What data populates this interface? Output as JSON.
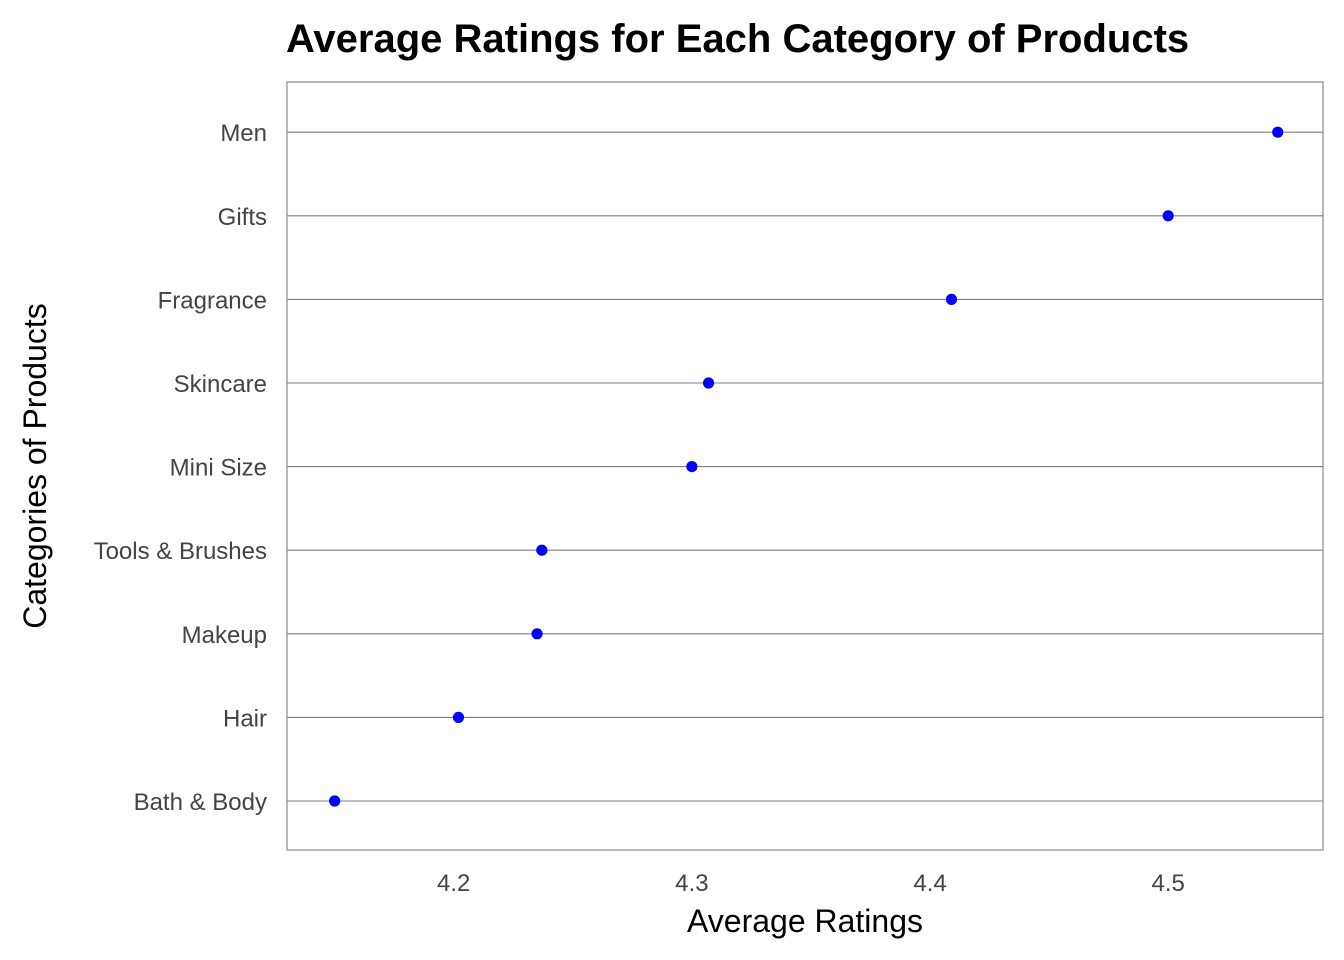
{
  "chart_data": {
    "type": "scatter",
    "title": "Average Ratings for Each Category of Products",
    "xlabel": "Average Ratings",
    "ylabel": "Categories of Products",
    "categories": [
      "Bath & Body",
      "Hair",
      "Makeup",
      "Tools & Brushes",
      "Mini Size",
      "Skincare",
      "Fragrance",
      "Gifts",
      "Men"
    ],
    "values": [
      4.15,
      4.202,
      4.235,
      4.237,
      4.3,
      4.307,
      4.409,
      4.5,
      4.546
    ],
    "x_ticks": [
      "4.2",
      "4.3",
      "4.4",
      "4.5"
    ],
    "xlim": [
      4.13,
      4.565
    ],
    "point_color": "#0000ff",
    "grid": "horizontal major lines only",
    "legend": "none"
  }
}
